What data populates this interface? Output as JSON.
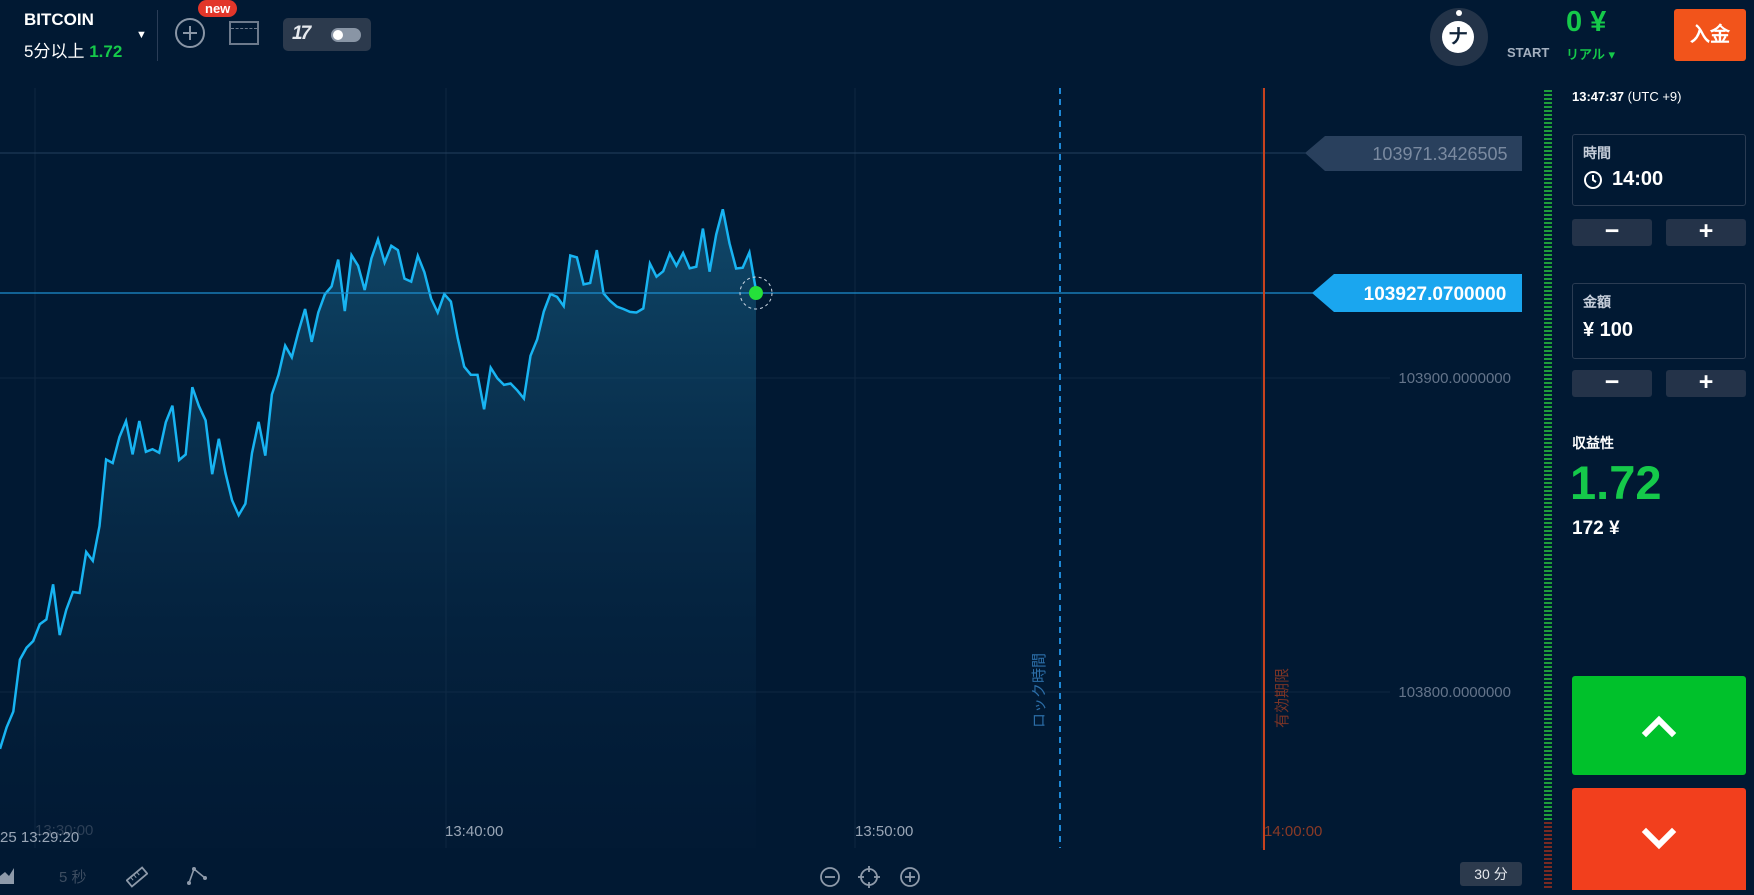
{
  "header": {
    "asset": "BITCOIN",
    "asset_condition": "5分以上",
    "asset_payout": "1.72",
    "new_badge": "new",
    "tradingview_logo": "17",
    "avatar_letter": "ナ",
    "balance": "0 ¥",
    "account_level": "START",
    "account_mode": "リアル ▾",
    "deposit_label": "入金"
  },
  "chart": {
    "price_labels": {
      "previous": "103971.3426505",
      "current": "103927.0700000",
      "grid_upper": "103900.0000000",
      "grid_lower": "103800.0000000"
    },
    "time_labels": {
      "t1": "13:30:00",
      "t2": "13:40:00",
      "t3": "13:50:00",
      "t4": "14:00:00",
      "start": "25 13:29:20"
    },
    "lock_label": "ロック時間",
    "expiry_label": "有効期限",
    "colors": {
      "line": "#18b4f2",
      "current_marker": "#25e03a",
      "expiry_line": "#c8421e",
      "lock_line": "#1e88d6"
    },
    "chart_data": {
      "type": "line",
      "x": [
        "13:29:20",
        "13:30:00",
        "13:31:00",
        "13:32:00",
        "13:33:00",
        "13:34:00",
        "13:35:00",
        "13:36:00",
        "13:37:00",
        "13:38:00",
        "13:39:00",
        "13:40:00",
        "13:41:00",
        "13:42:00",
        "13:43:00",
        "13:44:00",
        "13:45:00",
        "13:46:00",
        "13:47:00",
        "13:47:37"
      ],
      "y": [
        103780,
        103820,
        103830,
        103880,
        103875,
        103890,
        103855,
        103900,
        103920,
        103935,
        103940,
        103920,
        103900,
        103895,
        103925,
        103940,
        103920,
        103935,
        103945,
        103927.07
      ],
      "ylim": [
        103745,
        103992
      ],
      "grid": true
    }
  },
  "toolbar": {
    "interval_label": "5 秒",
    "timeframe": "30 分"
  },
  "panel": {
    "clock": "13:47:37",
    "timezone": "(UTC +9)",
    "time_label": "時間",
    "time_value": "14:00",
    "amount_label": "金額",
    "amount_value": "¥ 100",
    "minus": "−",
    "plus": "+",
    "payout_label": "収益性",
    "payout_value": "1.72",
    "payout_amount": "172 ¥"
  }
}
